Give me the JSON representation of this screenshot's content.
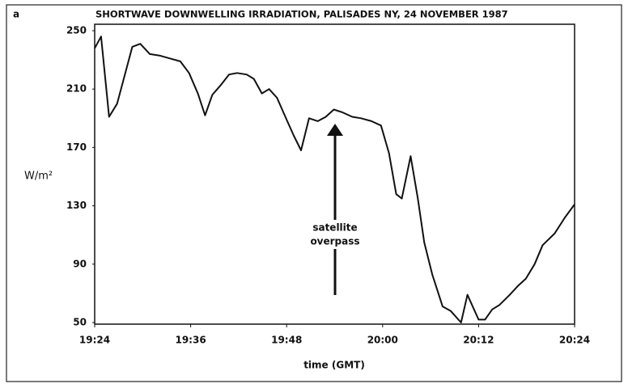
{
  "chart_data": {
    "type": "line",
    "panel": "a",
    "title": "SHORTWAVE DOWNWELLING IRRADIATION, PALISADES NY, 24 NOVEMBER 1987",
    "y_label": "W/m²",
    "x_label": "time (GMT)",
    "annotation": [
      "satellite",
      "overpass"
    ],
    "xlim": [
      1164,
      1224
    ],
    "xticks": [
      {
        "value": 1164,
        "label": "19:24"
      },
      {
        "value": 1176,
        "label": "19:36"
      },
      {
        "value": 1188,
        "label": "19:48"
      },
      {
        "value": 1200,
        "label": "20:00"
      },
      {
        "value": 1212,
        "label": "20:12"
      },
      {
        "value": 1224,
        "label": "20:24"
      }
    ],
    "ylim": [
      50,
      250
    ],
    "yticks": [
      50,
      90,
      130,
      170,
      210,
      250
    ],
    "grid": false,
    "x": [
      1164,
      1164.8,
      1165.8,
      1166.8,
      1168.7,
      1169.7,
      1170.9,
      1172.1,
      1173.4,
      1174.7,
      1175.8,
      1176.9,
      1177.8,
      1178.7,
      1179.8,
      1180.8,
      1181.8,
      1183,
      1183.9,
      1184.9,
      1185.8,
      1186.8,
      1188,
      1188.9,
      1189.8,
      1190.8,
      1191.9,
      1192.9,
      1193.9,
      1195,
      1196.2,
      1197.3,
      1198.6,
      1199.8,
      1200.8,
      1201.7,
      1202.4,
      1203.5,
      1204.4,
      1205.2,
      1206.2,
      1207.5,
      1208.5,
      1209.8,
      1210.6,
      1212,
      1212.8,
      1213.7,
      1214.6,
      1215.9,
      1216.9,
      1217.9,
      1219,
      1220,
      1221.5,
      1222.8,
      1224
    ],
    "series": [
      {
        "name": "irradiation",
        "color": "#111111",
        "values": [
          238,
          246,
          191,
          200,
          239,
          241,
          234,
          233,
          231,
          229,
          221,
          207,
          192,
          206,
          213,
          220,
          221,
          220,
          217,
          207,
          210,
          204,
          189,
          178,
          168,
          190,
          188,
          191,
          196,
          194,
          191,
          190,
          188,
          185,
          166,
          138,
          135,
          164,
          135,
          105,
          83,
          61,
          58,
          50,
          69,
          52,
          52,
          59,
          62,
          69,
          75,
          80,
          90,
          103,
          111,
          122,
          131
        ]
      }
    ]
  }
}
